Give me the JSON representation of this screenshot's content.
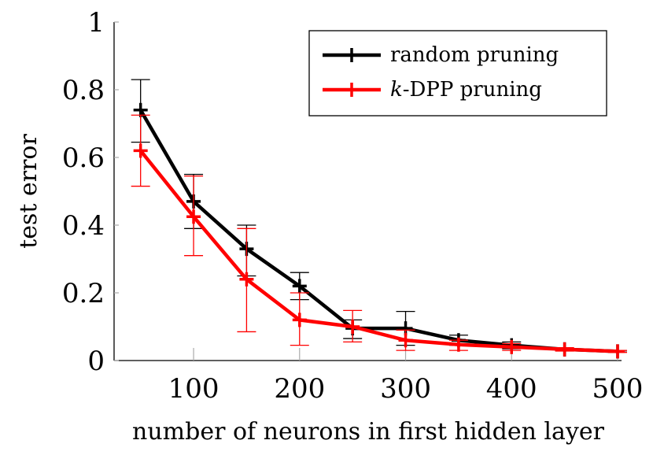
{
  "chart_data": {
    "type": "line",
    "title": "",
    "xlabel": "number of neurons in first hidden layer",
    "ylabel": "test error",
    "xlim": [
      25,
      500
    ],
    "ylim": [
      0,
      1
    ],
    "xticks": [
      100,
      200,
      300,
      400,
      500
    ],
    "yticks": [
      0,
      0.2,
      0.4,
      0.6,
      0.8,
      1
    ],
    "xtick_labels": [
      "100",
      "200",
      "300",
      "400",
      "500"
    ],
    "ytick_labels": [
      "0",
      "0.2",
      "0.4",
      "0.6",
      "0.8",
      "1"
    ],
    "grid": false,
    "legend_position": "top-right",
    "legend": {
      "random_label": "random pruning",
      "kdpp_label_italic": "k",
      "kdpp_label_rest": "-DPP pruning"
    },
    "series": [
      {
        "name": "random pruning",
        "color": "#000000",
        "x": [
          50,
          100,
          150,
          200,
          250,
          300,
          350,
          400,
          450,
          500
        ],
        "y": [
          0.74,
          0.47,
          0.33,
          0.22,
          0.095,
          0.095,
          0.06,
          0.045,
          0.033,
          0.027
        ],
        "err_low": [
          0.645,
          0.39,
          0.25,
          0.18,
          0.065,
          0.045,
          0.045,
          0.035,
          0.03,
          0.025
        ],
        "err_high": [
          0.83,
          0.55,
          0.4,
          0.26,
          0.12,
          0.145,
          0.075,
          0.055,
          0.037,
          0.03
        ]
      },
      {
        "name": "k-DPP pruning",
        "color": "#ff0000",
        "x": [
          50,
          100,
          150,
          200,
          250,
          300,
          350,
          400,
          450,
          500
        ],
        "y": [
          0.62,
          0.425,
          0.24,
          0.12,
          0.1,
          0.06,
          0.047,
          0.04,
          0.033,
          0.027
        ],
        "err_low": [
          0.515,
          0.31,
          0.085,
          0.045,
          0.055,
          0.03,
          0.03,
          0.03,
          0.028,
          0.024
        ],
        "err_high": [
          0.725,
          0.545,
          0.39,
          0.2,
          0.148,
          0.09,
          0.06,
          0.05,
          0.038,
          0.03
        ]
      }
    ]
  }
}
